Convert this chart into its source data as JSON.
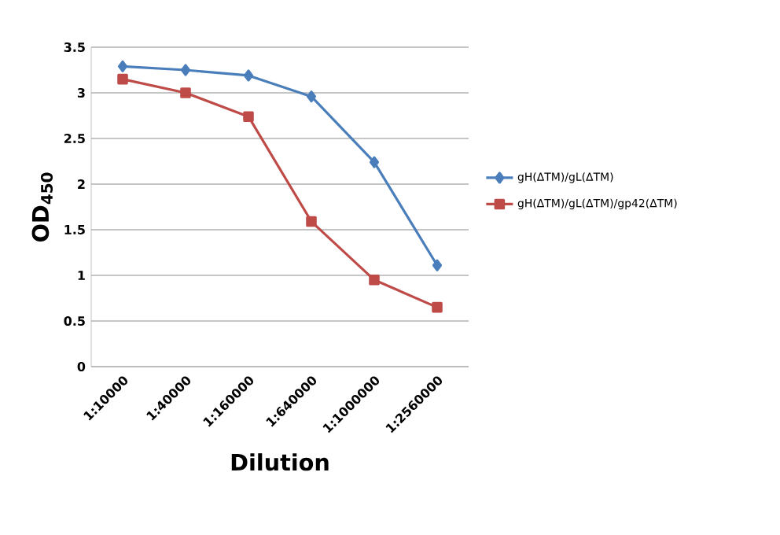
{
  "chart_data": {
    "type": "line",
    "xlabel": "Dilution",
    "ylabel": "OD$_{450}$",
    "categories": [
      "1:10000",
      "1:40000",
      "1:160000",
      "1:640000",
      "1:1000000",
      "1:2560000"
    ],
    "series": [
      {
        "name": "gH(ΔTM)/gL(ΔTM)",
        "color": "#4a7ebb",
        "marker": "diamond",
        "values": [
          3.29,
          3.25,
          3.19,
          2.96,
          2.24,
          1.11
        ]
      },
      {
        "name": "gH(ΔTM)/gL(ΔTM)/gp42(ΔTM)",
        "color": "#be4b48",
        "marker": "square",
        "values": [
          3.15,
          3.0,
          2.74,
          1.59,
          0.95,
          0.65
        ]
      }
    ],
    "ylim": [
      0,
      3.5
    ],
    "yticks": [
      0,
      0.5,
      1,
      1.5,
      2,
      2.5,
      3,
      3.5
    ],
    "grid": "y",
    "legend": "right"
  }
}
